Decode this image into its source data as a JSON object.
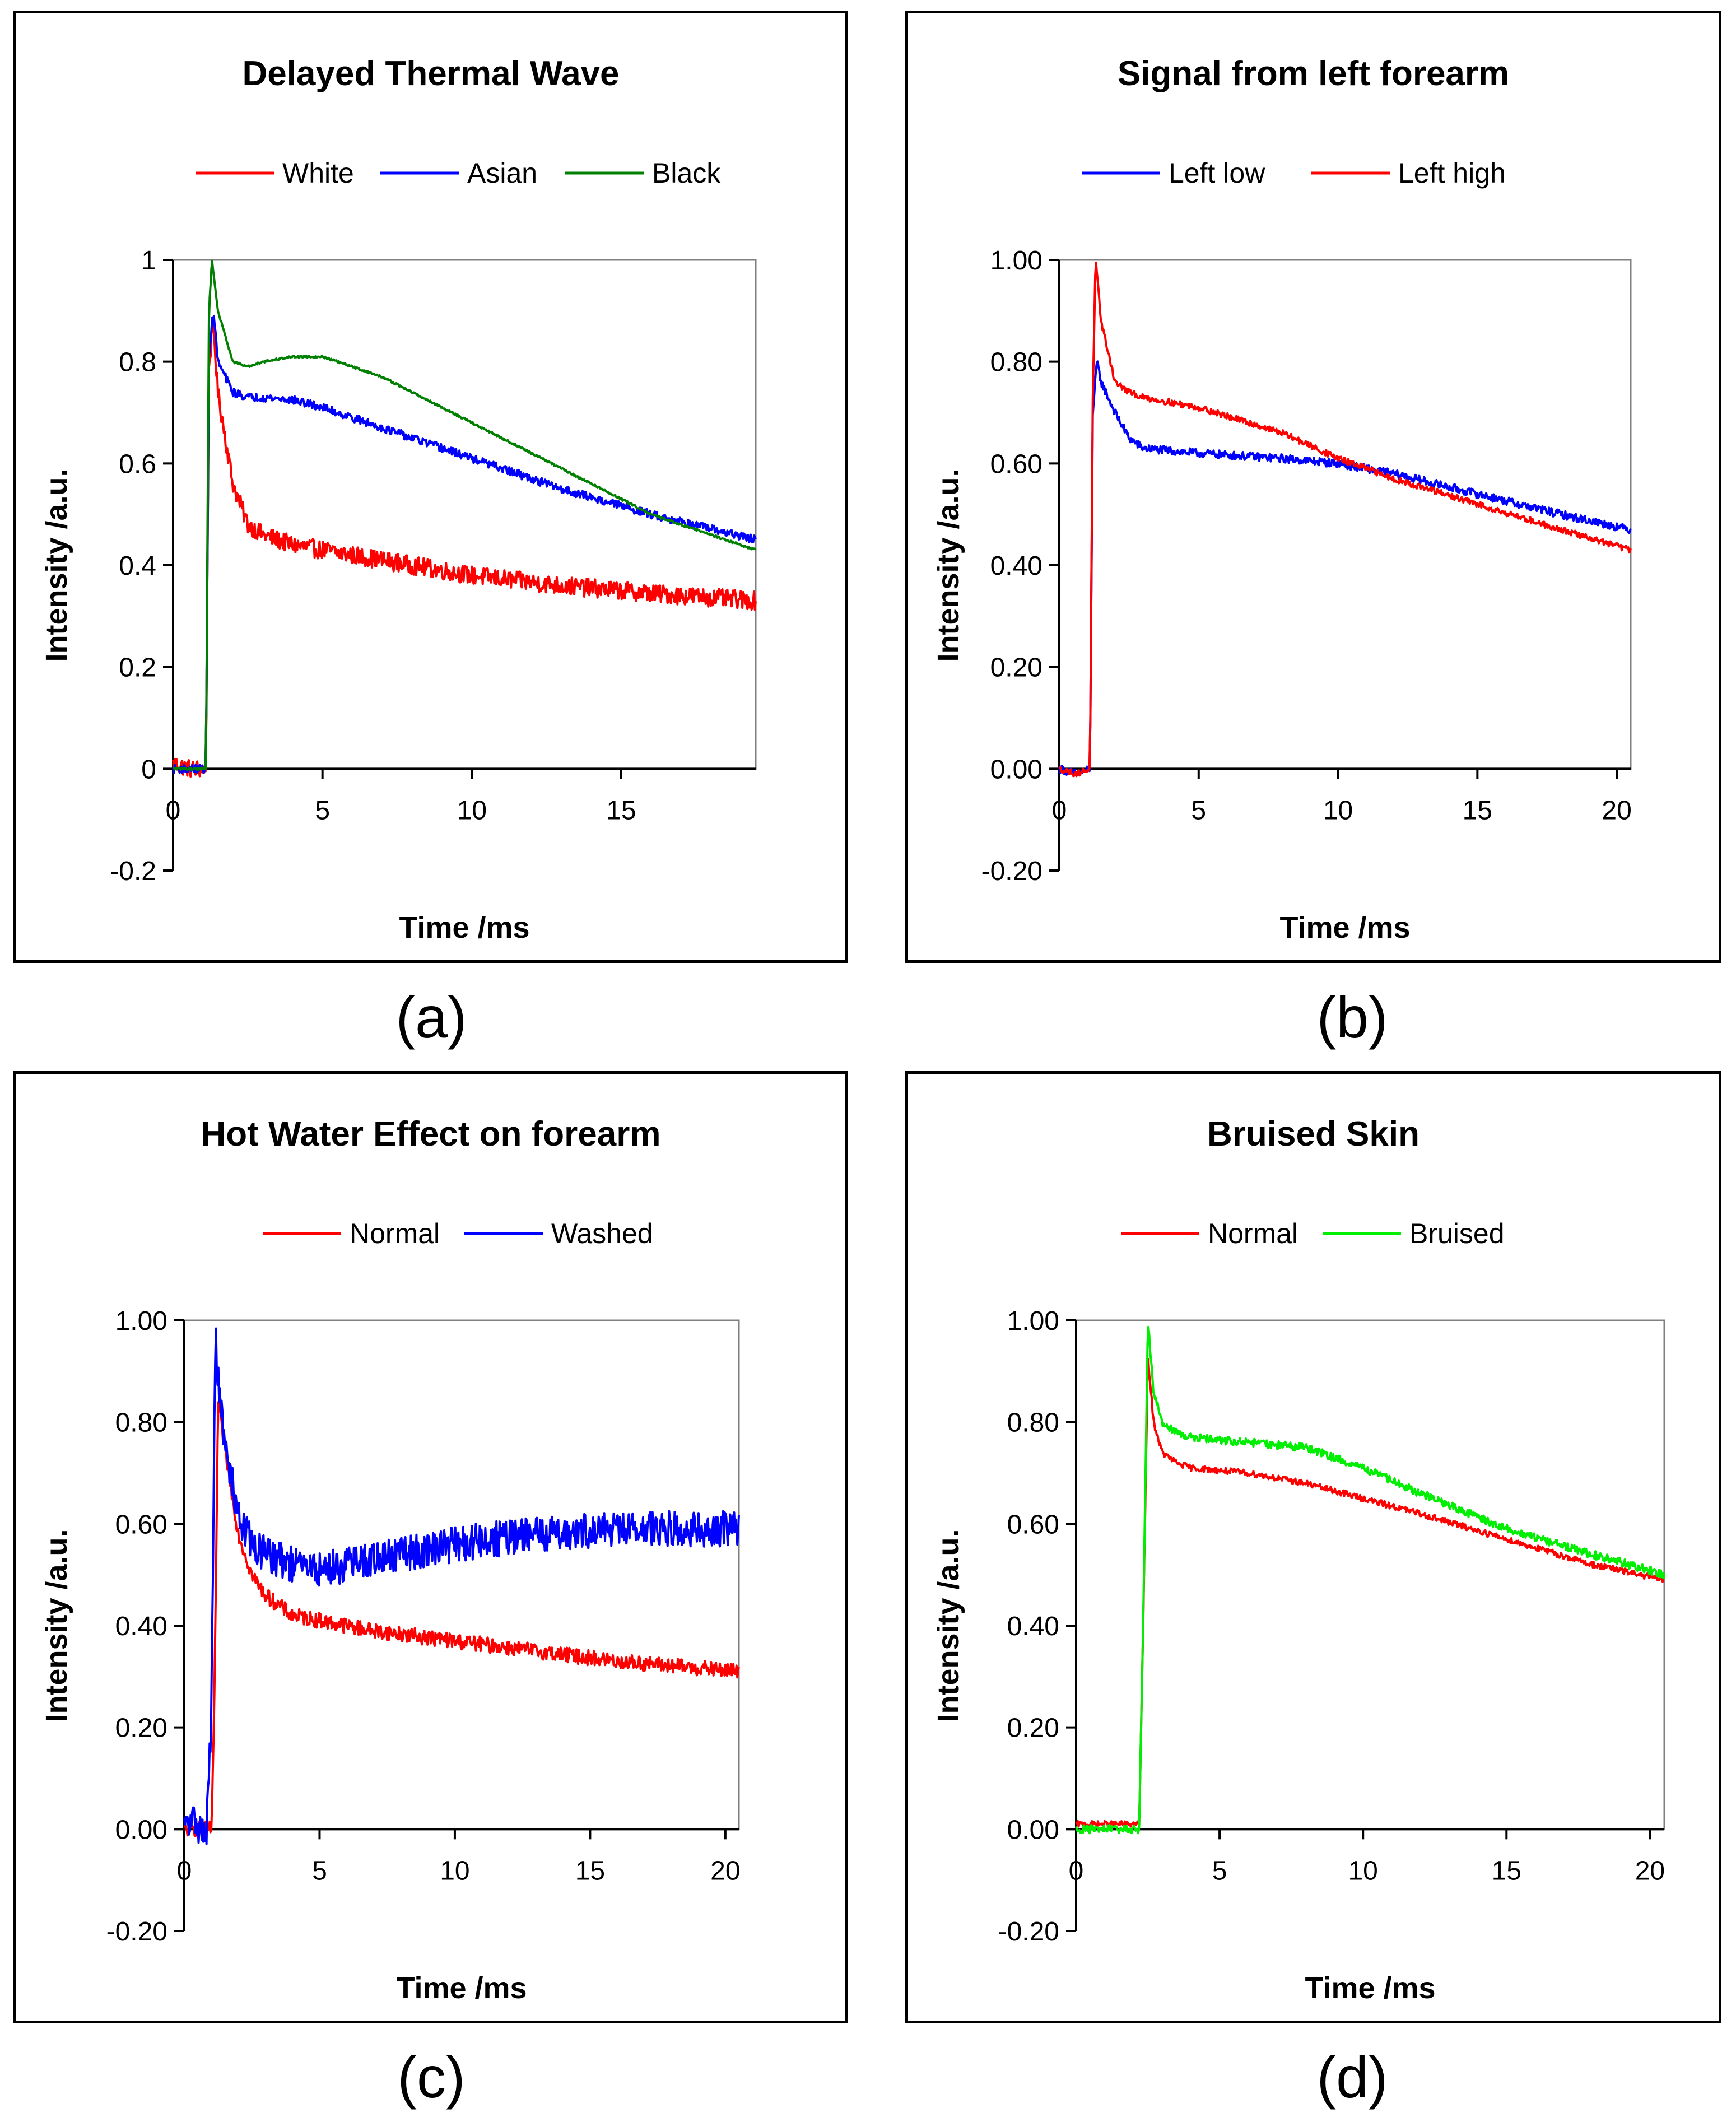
{
  "chart_data": [
    {
      "type": "line",
      "panel": "a",
      "title": "Delayed Thermal Wave",
      "xlabel": "Time /ms",
      "ylabel": "Intensity /a.u.",
      "xlim": [
        0,
        19.5
      ],
      "ylim": [
        -0.2,
        1
      ],
      "xticks": [
        0,
        5,
        10,
        15
      ],
      "xtick_labels": [
        "0",
        "5",
        "10",
        "15"
      ],
      "yticks": [
        -0.2,
        0,
        0.2,
        0.4,
        0.6,
        0.8,
        1
      ],
      "ytick_labels": [
        "-0.2",
        "0",
        "0.2",
        "0.4",
        "0.6",
        "0.8",
        "1"
      ],
      "grid": false,
      "legend_position": "top",
      "series": [
        {
          "name": "White",
          "color": "#ff0000",
          "noise": 0.018,
          "x": [
            0,
            0.6,
            1.1,
            1.2,
            1.35,
            1.5,
            2,
            2.5,
            3,
            4,
            5,
            7,
            10,
            13,
            16,
            19.5
          ],
          "y": [
            0.01,
            0,
            0,
            0.8,
            0.87,
            0.74,
            0.56,
            0.48,
            0.46,
            0.44,
            0.43,
            0.41,
            0.38,
            0.36,
            0.345,
            0.33
          ]
        },
        {
          "name": "Asian",
          "color": "#0000ff",
          "noise": 0.008,
          "x": [
            0,
            0.6,
            1.1,
            1.2,
            1.35,
            1.5,
            2,
            2.5,
            3,
            4,
            5,
            7,
            10,
            13,
            16,
            19.5
          ],
          "y": [
            0,
            0,
            0,
            0.82,
            0.9,
            0.8,
            0.74,
            0.73,
            0.73,
            0.725,
            0.71,
            0.67,
            0.61,
            0.55,
            0.5,
            0.45
          ]
        },
        {
          "name": "Black",
          "color": "#008000",
          "noise": 0.002,
          "x": [
            0,
            0.6,
            1.1,
            1.2,
            1.3,
            1.5,
            2,
            2.5,
            3,
            4,
            5,
            7,
            10,
            13,
            16,
            19.5
          ],
          "y": [
            0,
            0,
            0,
            0.9,
            1.0,
            0.9,
            0.8,
            0.79,
            0.8,
            0.81,
            0.81,
            0.77,
            0.68,
            0.59,
            0.5,
            0.43
          ]
        }
      ]
    },
    {
      "type": "line",
      "panel": "b",
      "title": "Signal from left forearm",
      "xlabel": "Time /ms",
      "ylabel": "Intensity /a.u.",
      "xlim": [
        0,
        20.5
      ],
      "ylim": [
        -0.2,
        1
      ],
      "xticks": [
        0,
        5,
        10,
        15,
        20
      ],
      "xtick_labels": [
        "0",
        "5",
        "10",
        "15",
        "20"
      ],
      "yticks": [
        -0.2,
        0,
        0.2,
        0.4,
        0.6,
        0.8,
        1
      ],
      "ytick_labels": [
        "-0.20",
        "0.00",
        "0.20",
        "0.40",
        "0.60",
        "0.80",
        "1.00"
      ],
      "grid": false,
      "legend_position": "top",
      "series": [
        {
          "name": "Left low",
          "color": "#0000ff",
          "noise": 0.008,
          "x": [
            0,
            0.6,
            1.1,
            1.2,
            1.35,
            1.5,
            2,
            2.5,
            3,
            5,
            8,
            10,
            12,
            15,
            18,
            20.5
          ],
          "y": [
            0,
            -0.01,
            0,
            0.7,
            0.8,
            0.76,
            0.7,
            0.65,
            0.63,
            0.62,
            0.61,
            0.6,
            0.58,
            0.54,
            0.5,
            0.47
          ]
        },
        {
          "name": "Left high",
          "color": "#ff0000",
          "noise": 0.006,
          "x": [
            0,
            0.6,
            1.1,
            1.2,
            1.3,
            1.5,
            2,
            2.5,
            3,
            5,
            8,
            10,
            12,
            15,
            18,
            20.5
          ],
          "y": [
            0,
            -0.01,
            0,
            0.72,
            1.0,
            0.88,
            0.76,
            0.74,
            0.73,
            0.71,
            0.66,
            0.61,
            0.57,
            0.52,
            0.47,
            0.43
          ]
        }
      ]
    },
    {
      "type": "line",
      "panel": "c",
      "title": "Hot Water Effect on forearm",
      "xlabel": "Time /ms",
      "ylabel": "Intensity /a.u.",
      "xlim": [
        0,
        20.5
      ],
      "ylim": [
        -0.2,
        1
      ],
      "xticks": [
        0,
        5,
        10,
        15,
        20
      ],
      "xtick_labels": [
        "0",
        "5",
        "10",
        "15",
        "20"
      ],
      "yticks": [
        -0.2,
        0,
        0.2,
        0.4,
        0.6,
        0.8,
        1
      ],
      "ytick_labels": [
        "-0.20",
        "0.00",
        "0.20",
        "0.40",
        "0.60",
        "0.80",
        "1.00"
      ],
      "grid": false,
      "legend_position": "top",
      "series": [
        {
          "name": "Normal",
          "color": "#ff0000",
          "noise": 0.015,
          "x": [
            0,
            0.5,
            1.0,
            1.1,
            1.25,
            1.4,
            2,
            2.5,
            3,
            4,
            5,
            7,
            10,
            13,
            16,
            20.5
          ],
          "y": [
            0,
            0,
            0,
            0.2,
            0.84,
            0.78,
            0.58,
            0.5,
            0.46,
            0.42,
            0.41,
            0.39,
            0.37,
            0.35,
            0.33,
            0.31
          ]
        },
        {
          "name": "Washed",
          "color": "#0000ff",
          "noise": 0.035,
          "x": [
            0,
            0.4,
            0.8,
            1.0,
            1.15,
            1.3,
            1.5,
            2,
            2.5,
            3,
            4,
            5,
            7,
            10,
            13,
            16,
            20.5
          ],
          "y": [
            0,
            0.02,
            -0.02,
            0.22,
            0.97,
            0.85,
            0.75,
            0.62,
            0.56,
            0.54,
            0.52,
            0.51,
            0.53,
            0.56,
            0.58,
            0.59,
            0.59
          ]
        }
      ]
    },
    {
      "type": "line",
      "panel": "d",
      "title": "Bruised Skin",
      "xlabel": "Time /ms",
      "ylabel": "Intensity /a.u.",
      "xlim": [
        0,
        20.5
      ],
      "ylim": [
        -0.2,
        1
      ],
      "xticks": [
        0,
        5,
        10,
        15,
        20
      ],
      "xtick_labels": [
        "0",
        "5",
        "10",
        "15",
        "20"
      ],
      "yticks": [
        -0.2,
        0,
        0.2,
        0.4,
        0.6,
        0.8,
        1
      ],
      "ytick_labels": [
        "-0.20",
        "0.00",
        "0.20",
        "0.40",
        "0.60",
        "0.80",
        "1.00"
      ],
      "grid": false,
      "legend_position": "top",
      "series": [
        {
          "name": "Normal",
          "color": "#ff0000",
          "noise": 0.006,
          "x": [
            0,
            1,
            2.2,
            2.35,
            2.5,
            2.7,
            3,
            3.5,
            4,
            6,
            8,
            10,
            12,
            15,
            18,
            20.5
          ],
          "y": [
            0.01,
            0.01,
            0.01,
            0.44,
            0.93,
            0.8,
            0.74,
            0.72,
            0.71,
            0.7,
            0.68,
            0.65,
            0.62,
            0.57,
            0.52,
            0.49
          ]
        },
        {
          "name": "Bruised",
          "color": "#00ee00",
          "noise": 0.008,
          "x": [
            0,
            1,
            2.2,
            2.35,
            2.5,
            2.7,
            3,
            3.5,
            4,
            6,
            8,
            10,
            12,
            15,
            18,
            20.5
          ],
          "y": [
            0,
            0,
            0,
            0.45,
            1.0,
            0.86,
            0.8,
            0.78,
            0.77,
            0.76,
            0.75,
            0.71,
            0.66,
            0.59,
            0.54,
            0.5
          ]
        }
      ]
    }
  ],
  "captions": {
    "a": "(a)",
    "b": "(b)",
    "c": "(c)",
    "d": "(d)"
  }
}
